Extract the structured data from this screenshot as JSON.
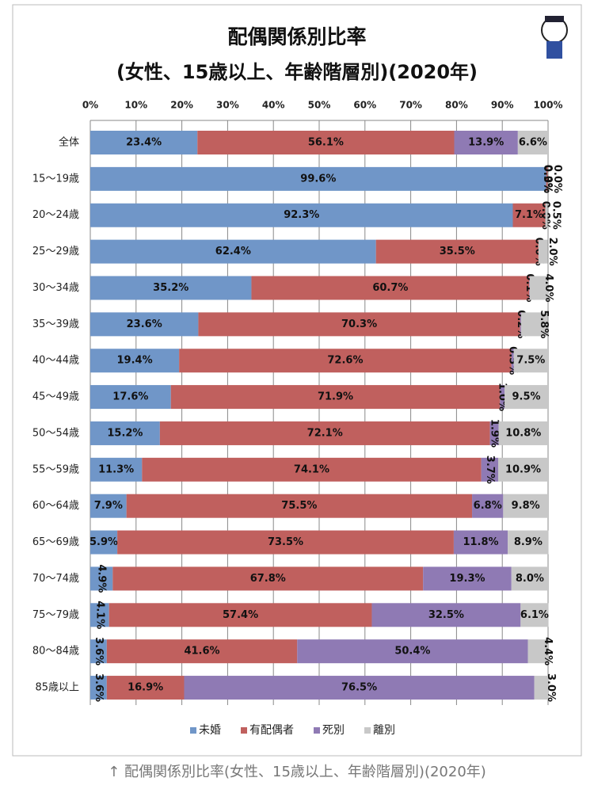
{
  "chart_data": {
    "type": "stacked-barh",
    "title": "配偶関係別比率",
    "subtitle": "(女性、15歳以上、年齢階層別)(2020年)",
    "categories": [
      "全体",
      "15〜19歳",
      "20〜24歳",
      "25〜29歳",
      "30〜34歳",
      "35〜39歳",
      "40〜44歳",
      "45〜49歳",
      "50〜54歳",
      "55〜59歳",
      "60〜64歳",
      "65〜69歳",
      "70〜74歳",
      "75〜79歳",
      "80〜84歳",
      "85歳以上"
    ],
    "series": [
      {
        "name": "未婚",
        "color": "#7096c8",
        "values": [
          23.4,
          99.6,
          92.3,
          62.4,
          35.2,
          23.6,
          19.4,
          17.6,
          15.2,
          11.3,
          7.9,
          5.9,
          4.9,
          4.1,
          3.6,
          3.6
        ],
        "value_labels": [
          "23.4%",
          "99.6%",
          "92.3%",
          "62.4%",
          "35.2%",
          "23.6%",
          "19.4%",
          "17.6%",
          "15.2%",
          "11.3%",
          "7.9%",
          "5.9%",
          "4.9%",
          "4.1%",
          "3.6%",
          "3.6%"
        ]
      },
      {
        "name": "有配偶者",
        "color": "#c0605e",
        "values": [
          56.1,
          0.3,
          7.1,
          35.5,
          60.7,
          70.3,
          72.6,
          71.9,
          72.1,
          74.1,
          75.5,
          73.5,
          67.8,
          57.4,
          41.6,
          16.9
        ],
        "value_labels": [
          "56.1%",
          "0.3%",
          "7.1%",
          "35.5%",
          "60.7%",
          "70.3%",
          "72.6%",
          "71.9%",
          "72.1%",
          "74.1%",
          "75.5%",
          "73.5%",
          "67.8%",
          "57.4%",
          "41.6%",
          "16.9%"
        ]
      },
      {
        "name": "死別",
        "color": "#8f7ab4",
        "values": [
          13.9,
          0.0,
          0.0,
          0.0,
          0.1,
          0.2,
          0.5,
          1.0,
          1.9,
          3.7,
          6.8,
          11.8,
          19.3,
          32.5,
          50.4,
          76.5
        ],
        "value_labels": [
          "13.9%",
          "0.0%",
          "0.0%",
          "0.0%",
          "0.1%",
          "0.2%",
          "0.5%",
          "1.0%",
          "1.9%",
          "3.7%",
          "6.8%",
          "11.8%",
          "19.3%",
          "32.5%",
          "50.4%",
          "76.5%"
        ]
      },
      {
        "name": "離別",
        "color": "#c8c8c8",
        "values": [
          6.6,
          0.0,
          0.5,
          2.0,
          4.0,
          5.8,
          7.5,
          9.5,
          10.8,
          10.9,
          9.8,
          8.9,
          8.0,
          6.1,
          4.4,
          3.0
        ],
        "value_labels": [
          "6.6%",
          "0.0%",
          "0.5%",
          "2.0%",
          "4.0%",
          "5.8%",
          "7.5%",
          "9.5%",
          "10.8%",
          "10.9%",
          "9.8%",
          "8.9%",
          "8.0%",
          "6.1%",
          "4.4%",
          "3.0%"
        ]
      }
    ],
    "xlim": [
      0,
      100
    ],
    "xticks": [
      {
        "value": 0,
        "label": "0%"
      },
      {
        "value": 10,
        "label": "10%"
      },
      {
        "value": 20,
        "label": "20%"
      },
      {
        "value": 30,
        "label": "30%"
      },
      {
        "value": 40,
        "label": "40%"
      },
      {
        "value": 50,
        "label": "50%"
      },
      {
        "value": 60,
        "label": "60%"
      },
      {
        "value": 70,
        "label": "70%"
      },
      {
        "value": 80,
        "label": "80%"
      },
      {
        "value": 90,
        "label": "90%"
      },
      {
        "value": 100,
        "label": "100%"
      }
    ],
    "grid": true,
    "legend": "bottom"
  },
  "caption": "↑ 配偶関係別比率(女性、15歳以上、年齢階層別)(2020年)"
}
